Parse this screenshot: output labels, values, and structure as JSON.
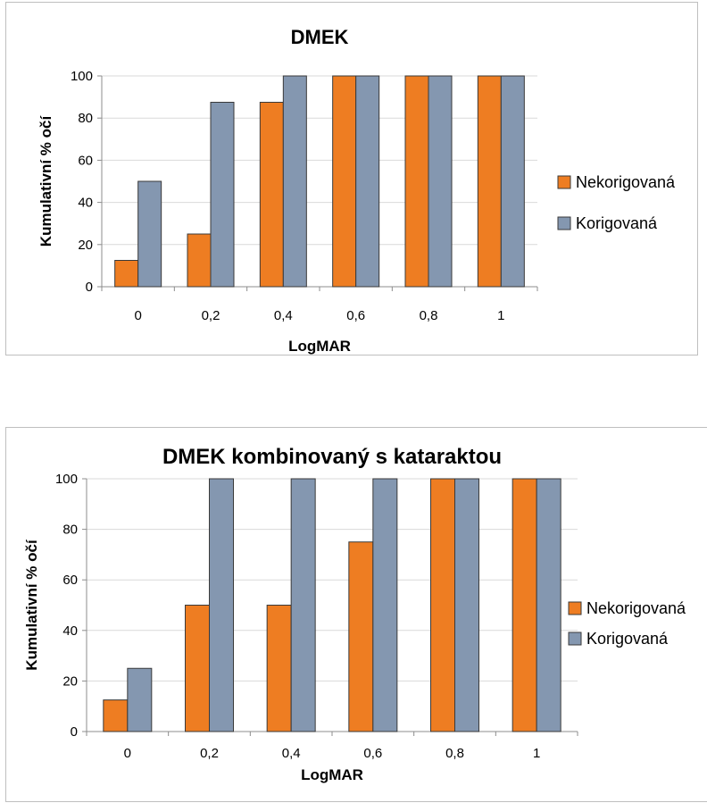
{
  "colors": {
    "nekorigovana": "#ee7d22",
    "korigovana": "#8497b0",
    "bar_stroke": "#3a3a3a",
    "grid": "#d9d9d9",
    "axis": "#8c8c8c"
  },
  "chart_data": [
    {
      "type": "bar",
      "title": "DMEK",
      "xlabel": "LogMAR",
      "ylabel": "Kumulativní % očí",
      "categories": [
        "0",
        "0,2",
        "0,4",
        "0,6",
        "0,8",
        "1"
      ],
      "ylim": [
        0,
        100
      ],
      "yticks": [
        "0",
        "20",
        "40",
        "60",
        "80",
        "100"
      ],
      "grid": true,
      "legend_position": "right",
      "series": [
        {
          "name": "Nekorigovaná",
          "values": [
            12.5,
            25,
            87.5,
            100,
            100,
            100
          ]
        },
        {
          "name": "Korigovaná",
          "values": [
            50,
            87.5,
            100,
            100,
            100,
            100
          ]
        }
      ]
    },
    {
      "type": "bar",
      "title": "DMEK kombinovaný s kataraktou",
      "xlabel": "LogMAR",
      "ylabel": "Kumulativní % očí",
      "categories": [
        "0",
        "0,2",
        "0,4",
        "0,6",
        "0,8",
        "1"
      ],
      "ylim": [
        0,
        100
      ],
      "yticks": [
        "0",
        "20",
        "40",
        "60",
        "80",
        "100"
      ],
      "grid": true,
      "legend_position": "right",
      "series": [
        {
          "name": "Nekorigovaná",
          "values": [
            12.5,
            50,
            50,
            75,
            100,
            100
          ]
        },
        {
          "name": "Korigovaná",
          "values": [
            25,
            100,
            100,
            100,
            100,
            100
          ]
        }
      ]
    }
  ]
}
